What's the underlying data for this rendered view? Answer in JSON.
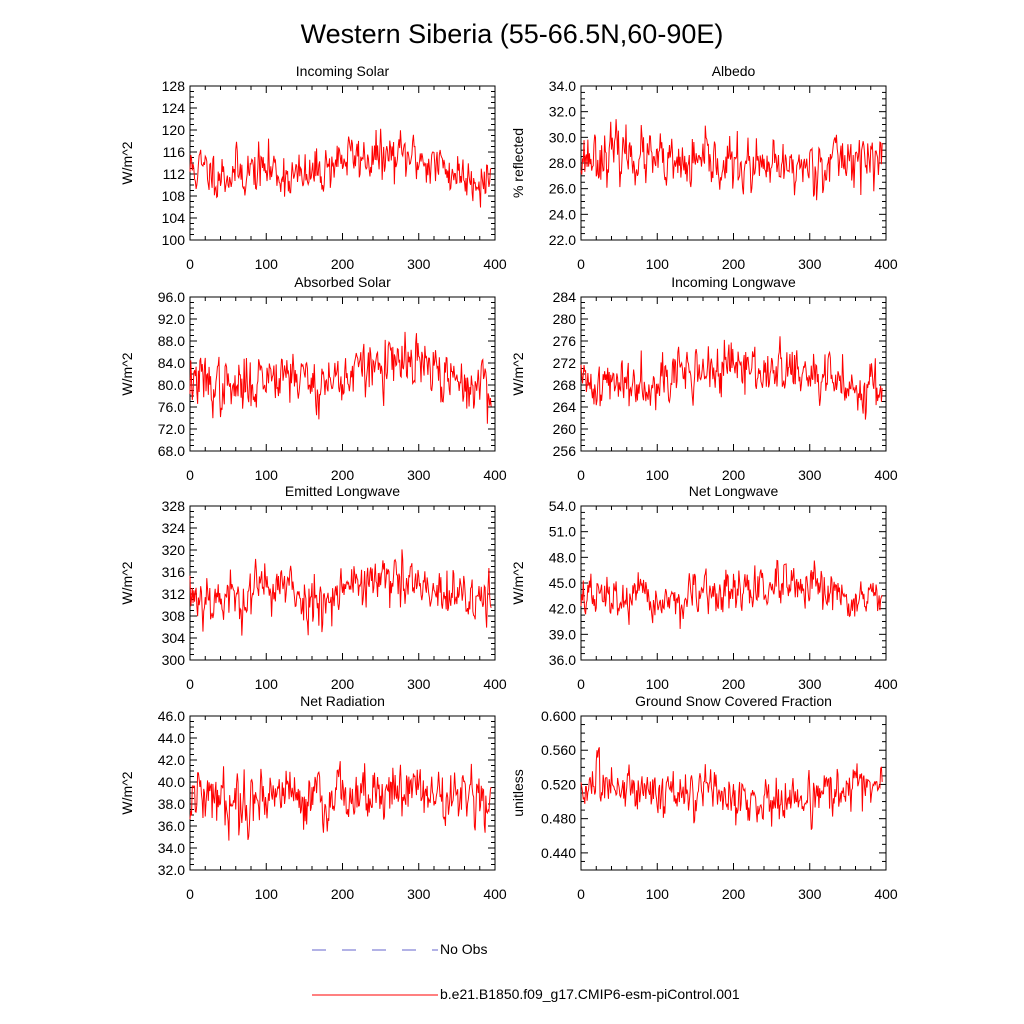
{
  "title": "Western Siberia (55-66.5N,60-90E)",
  "colors": {
    "series": "#ff0000",
    "obs": "#6666cc",
    "axis": "#000000"
  },
  "legend": {
    "obs_label": "No Obs",
    "model_label": "b.e21.B1850.f09_g17.CMIP6-esm-piControl.001"
  },
  "chart_data": [
    {
      "type": "line",
      "title": "Incoming Solar",
      "ylabel": "W/m^2",
      "xlabel": "",
      "xlim": [
        0,
        400
      ],
      "ylim": [
        100,
        128
      ],
      "yticks": [
        100,
        104,
        108,
        112,
        116,
        120,
        124,
        128
      ],
      "ydec": 0,
      "xticks": [
        0,
        100,
        200,
        300,
        400
      ],
      "n": 396,
      "seed": 11,
      "base": 114,
      "amp": 3.2,
      "anchors": [
        [
          0,
          113
        ],
        [
          50,
          112
        ],
        [
          100,
          113
        ],
        [
          150,
          111
        ],
        [
          200,
          115
        ],
        [
          250,
          115
        ],
        [
          300,
          115
        ],
        [
          350,
          112
        ],
        [
          396,
          111
        ]
      ]
    },
    {
      "type": "line",
      "title": "Albedo",
      "ylabel": "% reflected",
      "xlabel": "",
      "xlim": [
        0,
        400
      ],
      "ylim": [
        22.0,
        34.0
      ],
      "yticks": [
        22.0,
        24.0,
        26.0,
        28.0,
        30.0,
        32.0,
        34.0
      ],
      "ydec": 1,
      "xticks": [
        0,
        100,
        200,
        300,
        400
      ],
      "n": 396,
      "seed": 23,
      "base": 28.2,
      "amp": 1.5,
      "anchors": [
        [
          0,
          28.5
        ],
        [
          60,
          28.8
        ],
        [
          120,
          27.6
        ],
        [
          180,
          28.0
        ],
        [
          240,
          27.4
        ],
        [
          300,
          27.8
        ],
        [
          350,
          28.5
        ],
        [
          396,
          28.2
        ]
      ]
    },
    {
      "type": "line",
      "title": "Absorbed Solar",
      "ylabel": "W/m^2",
      "xlabel": "",
      "xlim": [
        0,
        400
      ],
      "ylim": [
        68.0,
        96.0
      ],
      "yticks": [
        68.0,
        72.0,
        76.0,
        80.0,
        84.0,
        88.0,
        92.0,
        96.0
      ],
      "ydec": 1,
      "xticks": [
        0,
        100,
        200,
        300,
        400
      ],
      "n": 396,
      "seed": 37,
      "base": 82,
      "amp": 3.6,
      "anchors": [
        [
          0,
          81
        ],
        [
          60,
          79
        ],
        [
          120,
          83
        ],
        [
          170,
          80
        ],
        [
          230,
          83
        ],
        [
          300,
          84
        ],
        [
          350,
          80
        ],
        [
          396,
          80
        ]
      ]
    },
    {
      "type": "line",
      "title": "Incoming Longwave",
      "ylabel": "W/m^2",
      "xlabel": "",
      "xlim": [
        0,
        400
      ],
      "ylim": [
        256,
        284
      ],
      "yticks": [
        256,
        260,
        264,
        268,
        272,
        276,
        280,
        284
      ],
      "ydec": 0,
      "xticks": [
        0,
        100,
        200,
        300,
        400
      ],
      "n": 396,
      "seed": 41,
      "base": 269.5,
      "amp": 3.4,
      "anchors": [
        [
          0,
          268
        ],
        [
          60,
          268.5
        ],
        [
          120,
          270
        ],
        [
          200,
          271
        ],
        [
          270,
          270.5
        ],
        [
          330,
          268.5
        ],
        [
          396,
          267.5
        ]
      ]
    },
    {
      "type": "line",
      "title": "Emitted Longwave",
      "ylabel": "W/m^2",
      "xlabel": "",
      "xlim": [
        0,
        400
      ],
      "ylim": [
        300,
        328
      ],
      "yticks": [
        300,
        304,
        308,
        312,
        316,
        320,
        324,
        328
      ],
      "ydec": 0,
      "xticks": [
        0,
        100,
        200,
        300,
        400
      ],
      "n": 396,
      "seed": 53,
      "base": 313,
      "amp": 3.6,
      "anchors": [
        [
          0,
          312
        ],
        [
          60,
          311
        ],
        [
          110,
          314
        ],
        [
          160,
          310.5
        ],
        [
          220,
          314.5
        ],
        [
          280,
          314
        ],
        [
          340,
          311
        ],
        [
          396,
          311
        ]
      ]
    },
    {
      "type": "line",
      "title": "Net Longwave",
      "ylabel": "W/m^2",
      "xlabel": "",
      "xlim": [
        0,
        400
      ],
      "ylim": [
        36.0,
        54.0
      ],
      "yticks": [
        36.0,
        39.0,
        42.0,
        45.0,
        48.0,
        51.0,
        54.0
      ],
      "ydec": 1,
      "xticks": [
        0,
        100,
        200,
        300,
        400
      ],
      "n": 396,
      "seed": 67,
      "base": 43.5,
      "amp": 1.8,
      "anchors": [
        [
          0,
          43.5
        ],
        [
          60,
          43
        ],
        [
          120,
          42.8
        ],
        [
          200,
          44
        ],
        [
          260,
          44.5
        ],
        [
          330,
          43.5
        ],
        [
          396,
          43
        ]
      ]
    },
    {
      "type": "line",
      "title": "Net Radiation",
      "ylabel": "W/m^2",
      "xlabel": "",
      "xlim": [
        0,
        400
      ],
      "ylim": [
        32.0,
        46.0
      ],
      "yticks": [
        32.0,
        34.0,
        36.0,
        38.0,
        40.0,
        42.0,
        44.0,
        46.0
      ],
      "ydec": 1,
      "xticks": [
        0,
        100,
        200,
        300,
        400
      ],
      "n": 396,
      "seed": 79,
      "base": 38.8,
      "amp": 1.9,
      "anchors": [
        [
          0,
          38.5
        ],
        [
          60,
          38.4
        ],
        [
          120,
          39.2
        ],
        [
          180,
          38.2
        ],
        [
          240,
          39.5
        ],
        [
          300,
          39.2
        ],
        [
          360,
          38.6
        ],
        [
          396,
          38
        ]
      ]
    },
    {
      "type": "line",
      "title": "Ground Snow Covered Fraction",
      "ylabel": "unitless",
      "xlabel": "",
      "xlim": [
        0,
        400
      ],
      "ylim": [
        0.42,
        0.6
      ],
      "yticks": [
        0.44,
        0.48,
        0.52,
        0.56,
        0.6
      ],
      "ydec": 3,
      "xticks": [
        0,
        100,
        200,
        300,
        400
      ],
      "n": 396,
      "seed": 83,
      "base": 0.512,
      "amp": 0.02,
      "anchors": [
        [
          0,
          0.515
        ],
        [
          60,
          0.52
        ],
        [
          120,
          0.51
        ],
        [
          190,
          0.505
        ],
        [
          250,
          0.5
        ],
        [
          320,
          0.508
        ],
        [
          370,
          0.52
        ],
        [
          396,
          0.512
        ]
      ]
    }
  ]
}
